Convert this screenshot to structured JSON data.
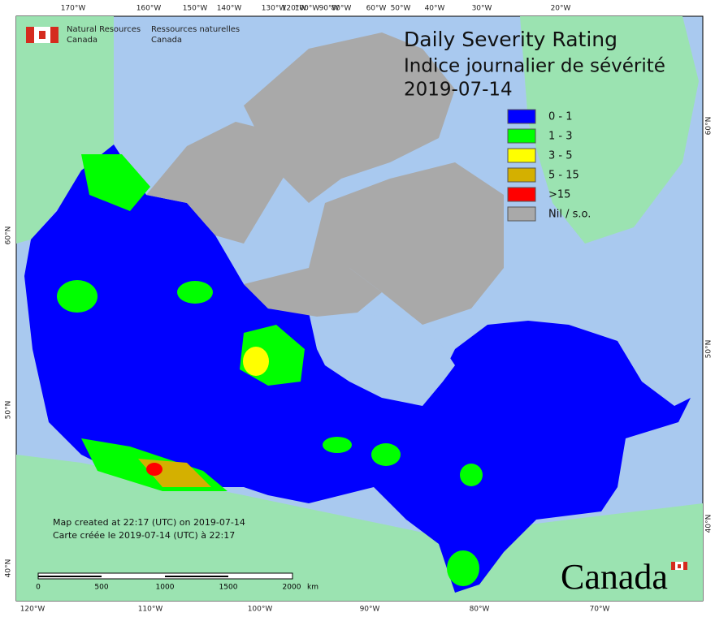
{
  "header": {
    "org_en": "Natural Resources",
    "org_en_2": "Canada",
    "org_fr": "Ressources naturelles",
    "org_fr_2": "Canada"
  },
  "title": {
    "en": "Daily Severity Rating",
    "fr": "Indice journalier de sévérité",
    "date": "2019-07-14"
  },
  "legend": [
    {
      "label": "0 - 1",
      "color": "#0000ff"
    },
    {
      "label": "1 - 3",
      "color": "#00ff00"
    },
    {
      "label": "3 - 5",
      "color": "#ffff00"
    },
    {
      "label": "5 - 15",
      "color": "#d4b000"
    },
    {
      "label": ">15",
      "color": "#ff0000"
    },
    {
      "label": "Nil / s.o.",
      "color": "#a9a9a9"
    }
  ],
  "graticule": {
    "top": [
      "170°W",
      "160°W",
      "150°W",
      "140°W",
      "130°W",
      "120°W",
      "100°W",
      "90°W",
      "80°W",
      "60°W",
      "50°W",
      "40°W",
      "30°W",
      "20°W"
    ],
    "bottom": [
      "120°W",
      "110°W",
      "100°W",
      "90°W",
      "80°W",
      "70°W"
    ],
    "left": [
      "60°N",
      "50°N",
      "40°N"
    ],
    "right": [
      "60°N",
      "50°N",
      "40°N"
    ]
  },
  "notes": [
    "Map created at 22:17 (UTC) on 2019-07-14",
    "Carte créée le 2019-07-14 (UTC) à 22:17"
  ],
  "scale_bar": {
    "labels": [
      "0",
      "500",
      "1000",
      "1500",
      "2000"
    ],
    "unit": "km"
  },
  "wordmark": "Canada"
}
